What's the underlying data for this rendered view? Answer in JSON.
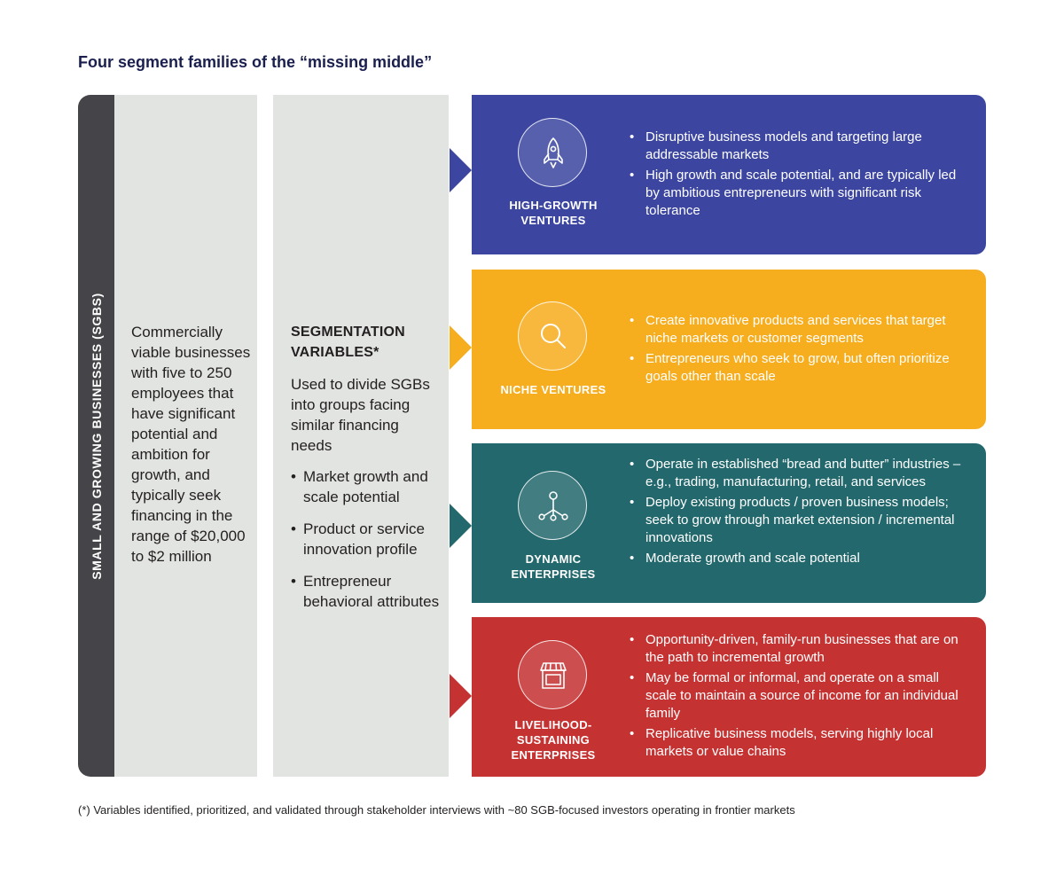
{
  "title": "Four segment families of the “missing middle”",
  "sidebar_label": "SMALL AND GROWING BUSINESSES (SGBS)",
  "definition": "Commercially viable businesses with five to 250 employees that have significant potential and ambition for growth, and typically seek financing in the range of $20,000 to $2 million",
  "variables": {
    "heading": "SEGMENTATION VARIABLES*",
    "description": "Used to divide SGBs into groups facing similar financing needs",
    "items": [
      "Market growth and scale potential",
      "Product or service innovation profile",
      "Entrepreneur behavioral attributes"
    ]
  },
  "segments": [
    {
      "label": "HIGH-GROWTH VENTURES",
      "icon": "rocket-icon",
      "color": "#3c46a0",
      "bullets": [
        "Disruptive business models and targeting large addressable markets",
        "High growth and scale potential, and are typically led by ambitious entrepreneurs with significant risk tolerance"
      ]
    },
    {
      "label": "NICHE VENTURES",
      "icon": "magnifier-icon",
      "color": "#f6ad1e",
      "bullets": [
        "Create innovative products and services that target niche markets or customer segments",
        "Entrepreneurs who seek to grow, but often prioritize goals other than scale"
      ]
    },
    {
      "label": "DYNAMIC ENTERPRISES",
      "icon": "network-icon",
      "color": "#23686d",
      "bullets": [
        "Operate in established “bread and butter” industries – e.g., trading, manufacturing, retail, and services",
        "Deploy existing products / proven business models; seek to grow through market extension / incremental innovations",
        "Moderate growth and scale potential"
      ]
    },
    {
      "label": "LIVELIHOOD-SUSTAINING ENTERPRISES",
      "icon": "storefront-icon",
      "color": "#c53232",
      "bullets": [
        "Opportunity-driven, family-run businesses that are on the path to incremental growth",
        "May be formal or informal, and operate on a small scale to maintain a source of income for an individual family",
        "Replicative business models, serving highly local markets or value chains"
      ]
    }
  ],
  "footnote": "(*) Variables identified, prioritized, and validated through stakeholder interviews with ~80 SGB-focused investors operating in frontier markets"
}
